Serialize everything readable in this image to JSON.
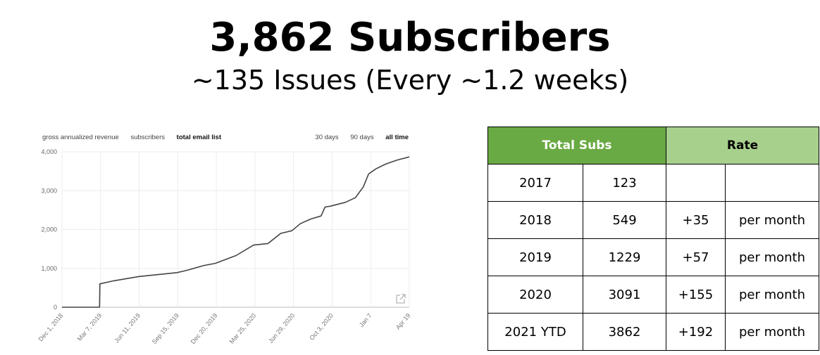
{
  "header": {
    "title": "3,862 Subscribers",
    "subtitle": "~135 Issues (Every ~1.2 weeks)"
  },
  "chart_tabs": {
    "left": [
      "gross annualized revenue",
      "subscribers",
      "total email list"
    ],
    "left_active": 2,
    "right": [
      "30 days",
      "90 days",
      "all time"
    ],
    "right_active": 2
  },
  "chart_data": {
    "type": "line",
    "title": "",
    "xlabel": "",
    "ylabel": "",
    "ylim": [
      0,
      4000
    ],
    "grid": true,
    "yticks": [
      "0",
      "1,000",
      "2,000",
      "3,000",
      "4,000"
    ],
    "xticks": [
      "Dec 1, 2018",
      "Mar 7, 2019",
      "Jun 11, 2019",
      "Sep 15, 2019",
      "Dec 20, 2019",
      "Mar 25, 2020",
      "Jun 29, 2020",
      "Oct 3, 2020",
      "Jan 7",
      "Apr 19"
    ],
    "series": [
      {
        "x": [
          "2018-12-01",
          "2019-03-05",
          "2019-03-06",
          "2019-04-10",
          "2019-06-11",
          "2019-09-15",
          "2019-10-10",
          "2019-11-20",
          "2019-12-20",
          "2020-02-10",
          "2020-03-25",
          "2020-04-30",
          "2020-06-01",
          "2020-06-29",
          "2020-07-20",
          "2020-08-15",
          "2020-09-10",
          "2020-09-20",
          "2020-10-03",
          "2020-11-10",
          "2020-12-05",
          "2020-12-25",
          "2021-01-07",
          "2021-01-25",
          "2021-02-20",
          "2021-03-20",
          "2021-04-19"
        ],
        "y": [
          0,
          0,
          600,
          680,
          790,
          890,
          950,
          1070,
          1130,
          1330,
          1600,
          1640,
          1900,
          1970,
          2150,
          2270,
          2350,
          2580,
          2600,
          2700,
          2820,
          3100,
          3430,
          3560,
          3690,
          3790,
          3870
        ]
      }
    ]
  },
  "table": {
    "headers": [
      "Total Subs",
      "Rate"
    ],
    "rows": [
      [
        "2017",
        "123",
        "",
        ""
      ],
      [
        "2018",
        "549",
        "+35",
        "per month"
      ],
      [
        "2019",
        "1229",
        "+57",
        "per month"
      ],
      [
        "2020",
        "3091",
        "+155",
        "per month"
      ],
      [
        "2021 YTD",
        "3862",
        "+192",
        "per month"
      ]
    ]
  }
}
